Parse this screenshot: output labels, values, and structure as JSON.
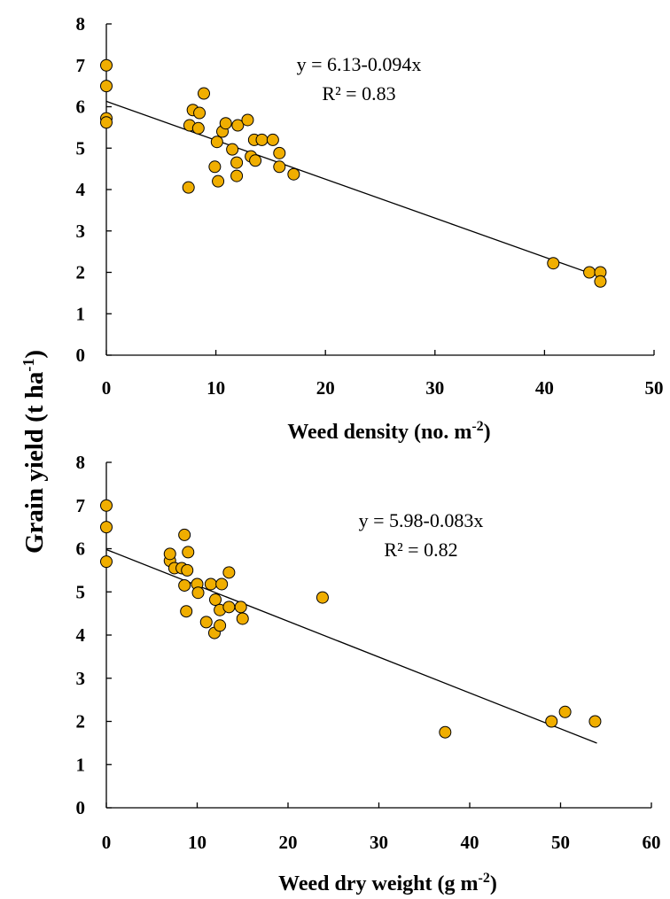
{
  "y_axis_title": {
    "main": "Grain yield (t ha",
    "sup": "-1",
    "close": ")"
  },
  "chart_data": [
    {
      "type": "scatter",
      "title": "",
      "xlabel": {
        "main": "Weed density (no. m",
        "sup": "-2",
        "close": ")"
      },
      "ylabel": "Grain yield (t ha-1)",
      "xlim": [
        0,
        50
      ],
      "ylim": [
        0,
        8
      ],
      "xticks": [
        0,
        10,
        20,
        30,
        40,
        50
      ],
      "yticks": [
        0,
        1,
        2,
        3,
        4,
        5,
        6,
        7,
        8
      ],
      "grid": false,
      "marker_color": "#f0ae00",
      "equation": "y = 6.13-0.094x",
      "r2": "R² = 0.83",
      "trendline": {
        "intercept": 6.13,
        "slope": -0.094,
        "x_range": [
          0,
          45
        ]
      },
      "points": [
        [
          0,
          7.0
        ],
        [
          0,
          6.5
        ],
        [
          0,
          5.72
        ],
        [
          0,
          5.62
        ],
        [
          7.5,
          4.05
        ],
        [
          7.6,
          5.55
        ],
        [
          7.9,
          5.92
        ],
        [
          8.4,
          5.48
        ],
        [
          8.5,
          5.85
        ],
        [
          8.9,
          6.32
        ],
        [
          9.9,
          4.55
        ],
        [
          10.1,
          5.15
        ],
        [
          10.2,
          4.2
        ],
        [
          10.6,
          5.4
        ],
        [
          10.9,
          5.6
        ],
        [
          11.5,
          4.97
        ],
        [
          11.9,
          4.65
        ],
        [
          11.9,
          4.33
        ],
        [
          12.0,
          5.55
        ],
        [
          12.9,
          5.68
        ],
        [
          13.2,
          4.8
        ],
        [
          13.5,
          5.2
        ],
        [
          13.6,
          4.7
        ],
        [
          14.2,
          5.2
        ],
        [
          15.2,
          5.2
        ],
        [
          15.8,
          4.88
        ],
        [
          15.8,
          4.55
        ],
        [
          17.1,
          4.37
        ],
        [
          40.8,
          2.22
        ],
        [
          44.1,
          2.0
        ],
        [
          45.1,
          2.0
        ],
        [
          45.1,
          1.78
        ]
      ]
    },
    {
      "type": "scatter",
      "title": "",
      "xlabel": {
        "main": "Weed dry weight (g m",
        "sup": "-2",
        "close": ")"
      },
      "ylabel": "Grain yield (t ha-1)",
      "xlim": [
        0,
        60
      ],
      "ylim": [
        0,
        8
      ],
      "xticks": [
        0,
        10,
        20,
        30,
        40,
        50,
        60
      ],
      "yticks": [
        0,
        1,
        2,
        3,
        4,
        5,
        6,
        7,
        8
      ],
      "grid": false,
      "marker_color": "#f0ae00",
      "equation": "y = 5.98-0.083x",
      "r2": "R² = 0.82",
      "trendline": {
        "intercept": 5.98,
        "slope": -0.083,
        "x_range": [
          0,
          54
        ]
      },
      "points": [
        [
          0,
          7.0
        ],
        [
          0,
          6.5
        ],
        [
          0,
          5.7
        ],
        [
          7.0,
          5.72
        ],
        [
          7.0,
          5.88
        ],
        [
          7.5,
          5.55
        ],
        [
          8.3,
          5.55
        ],
        [
          8.6,
          6.32
        ],
        [
          8.6,
          5.15
        ],
        [
          8.8,
          4.55
        ],
        [
          8.9,
          5.5
        ],
        [
          9.0,
          5.92
        ],
        [
          10.0,
          5.18
        ],
        [
          10.1,
          4.98
        ],
        [
          11.0,
          4.3
        ],
        [
          11.5,
          5.18
        ],
        [
          11.9,
          4.05
        ],
        [
          12.0,
          4.82
        ],
        [
          12.5,
          4.22
        ],
        [
          12.5,
          4.58
        ],
        [
          12.7,
          5.18
        ],
        [
          13.5,
          5.45
        ],
        [
          13.5,
          4.65
        ],
        [
          14.8,
          4.65
        ],
        [
          15.0,
          4.38
        ],
        [
          23.8,
          4.87
        ],
        [
          37.3,
          1.75
        ],
        [
          49.0,
          2.0
        ],
        [
          50.5,
          2.22
        ],
        [
          53.8,
          2.0
        ]
      ]
    }
  ]
}
